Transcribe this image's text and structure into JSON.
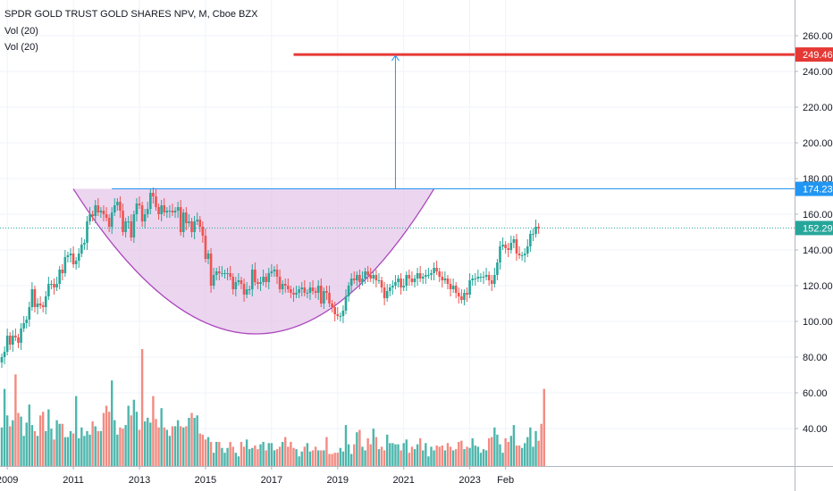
{
  "header": {
    "title": "SPDR GOLD TRUST GOLD SHARES NPV, M, Cboe BZX",
    "indicators": [
      "Vol (20)",
      "Vol (20)"
    ]
  },
  "colors": {
    "up": "#26a69a",
    "down": "#ef5350",
    "vol_up": "#4db6ac",
    "vol_down": "#f28b82",
    "resistance": "#2196f3",
    "target": "#e53935",
    "cup_fill": "#e4c7ea",
    "cup_stroke": "#ab47bc",
    "last_price": "#26a69a",
    "grid": "#f0f3fa",
    "axis_text": "#131722"
  },
  "chart_data": {
    "type": "candlestick",
    "instrument": "SPDR GOLD TRUST GOLD SHARES NPV",
    "interval": "M",
    "exchange": "Cboe BZX",
    "start": "2008-11",
    "x_axis_labels": [
      "2009",
      "2011",
      "2013",
      "2015",
      "2017",
      "2019",
      "2021",
      "2023",
      "Feb"
    ],
    "y_axis_ticks": [
      "40.00",
      "60.00",
      "80.00",
      "100.00",
      "120.00",
      "140.00",
      "160.00",
      "180.00",
      "200.00",
      "220.00",
      "240.00",
      "260.00"
    ],
    "ylim": [
      28,
      270
    ],
    "grid": true,
    "price_labels": [
      {
        "value": "249.46",
        "role": "target"
      },
      {
        "value": "174.23",
        "role": "resistance"
      },
      {
        "value": "152.29",
        "role": "last_price"
      }
    ],
    "target_price": 249.46,
    "resistance_price": 174.23,
    "last_price": 152.29,
    "cup_rim_left": "2011-01",
    "cup_rim_right": "2021-12",
    "cup_bottom": "2016-08",
    "cup_bottom_price": 93,
    "closes": [
      80,
      83,
      92,
      87,
      92,
      91,
      88,
      96,
      99,
      101,
      108,
      118,
      108,
      110,
      109,
      108,
      114,
      121,
      121,
      119,
      121,
      129,
      127,
      136,
      137,
      138,
      132,
      134,
      138,
      143,
      144,
      156,
      160,
      159,
      165,
      161,
      162,
      160,
      158,
      153,
      161,
      165,
      167,
      162,
      150,
      156,
      156,
      147,
      160,
      166,
      165,
      156,
      160,
      163,
      172,
      170,
      164,
      160,
      165,
      161,
      162,
      162,
      161,
      162,
      164,
      150,
      161,
      155,
      156,
      150,
      156,
      157,
      153,
      148,
      135,
      138,
      120,
      126,
      128,
      127,
      127,
      127,
      127,
      125,
      118,
      122,
      123,
      121,
      115,
      118,
      118,
      129,
      122,
      121,
      122,
      125,
      122,
      127,
      128,
      129,
      125,
      118,
      121,
      120,
      118,
      116,
      115,
      116,
      118,
      119,
      116,
      116,
      119,
      117,
      116,
      120,
      110,
      117,
      116,
      110,
      108,
      104,
      103,
      103,
      106,
      114,
      120,
      124,
      123,
      126,
      122,
      124,
      128,
      126,
      124,
      126,
      123,
      123,
      119,
      113,
      117,
      119,
      120,
      122,
      124,
      119,
      120,
      126,
      124,
      122,
      124,
      127,
      124,
      125,
      126,
      126,
      127,
      130,
      128,
      125,
      123,
      124,
      121,
      118,
      120,
      116,
      114,
      112,
      116,
      115,
      123,
      124,
      124,
      125,
      125,
      125,
      126,
      123,
      121,
      126,
      133,
      142,
      143,
      141,
      140,
      144,
      146,
      138,
      137,
      137,
      138,
      142,
      149,
      149,
      153,
      152
    ],
    "volume_fractions": [
      0.32,
      0.64,
      0.42,
      0.33,
      0.38,
      0.76,
      0.44,
      0.41,
      0.25,
      0.36,
      0.51,
      0.34,
      0.29,
      0.25,
      0.42,
      0.45,
      0.29,
      0.47,
      0.31,
      0.22,
      0.38,
      0.35,
      0.35,
      0.24,
      0.24,
      0.29,
      0.27,
      0.58,
      0.23,
      0.32,
      0.25,
      0.29,
      0.26,
      0.37,
      0.33,
      0.29,
      0.29,
      0.44,
      0.5,
      0.45,
      0.71,
      0.38,
      0.26,
      0.32,
      0.31,
      0.34,
      0.5,
      0.42,
      0.55,
      0.45,
      0.3,
      0.97,
      0.37,
      0.4,
      0.36,
      0.58,
      0.39,
      0.32,
      0.48,
      0.32,
      0.3,
      0.25,
      0.33,
      0.33,
      0.38,
      0.33,
      0.32,
      0.33,
      0.4,
      0.44,
      0.4,
      0.42,
      0.27,
      0.26,
      0.22,
      0.24,
      0.2,
      0.11,
      0.2,
      0.2,
      0.15,
      0.11,
      0.15,
      0.2,
      0.16,
      0.11,
      0.08,
      0.2,
      0.16,
      0.22,
      0.14,
      0.15,
      0.17,
      0.14,
      0.18,
      0.2,
      0.13,
      0.19,
      0.19,
      0.13,
      0.14,
      0.16,
      0.2,
      0.24,
      0.16,
      0.2,
      0.15,
      0.14,
      0.08,
      0.12,
      0.16,
      0.19,
      0.12,
      0.13,
      0.16,
      0.13,
      0.13,
      0.13,
      0.24,
      0.1,
      0.1,
      0.11,
      0.11,
      0.15,
      0.12,
      0.34,
      0.18,
      0.1,
      0.18,
      0.28,
      0.3,
      0.16,
      0.13,
      0.23,
      0.18,
      0.31,
      0.24,
      0.14,
      0.16,
      0.13,
      0.26,
      0.19,
      0.19,
      0.18,
      0.18,
      0.13,
      0.19,
      0.22,
      0.11,
      0.16,
      0.14,
      0.18,
      0.23,
      0.13,
      0.19,
      0.08,
      0.16,
      0.13,
      0.17,
      0.16,
      0.17,
      0.13,
      0.19,
      0.16,
      0.13,
      0.14,
      0.2,
      0.21,
      0.14,
      0.16,
      0.15,
      0.23,
      0.17,
      0.16,
      0.11,
      0.14,
      0.13,
      0.23,
      0.24,
      0.32,
      0.26,
      0.18,
      0.11,
      0.23,
      0.2,
      0.25,
      0.34,
      0.17,
      0.17,
      0.15,
      0.19,
      0.24,
      0.32,
      0.16,
      0.29,
      0.21,
      0.35,
      0.64
    ],
    "volume_pane_ylim_fraction": [
      0,
      1
    ]
  }
}
